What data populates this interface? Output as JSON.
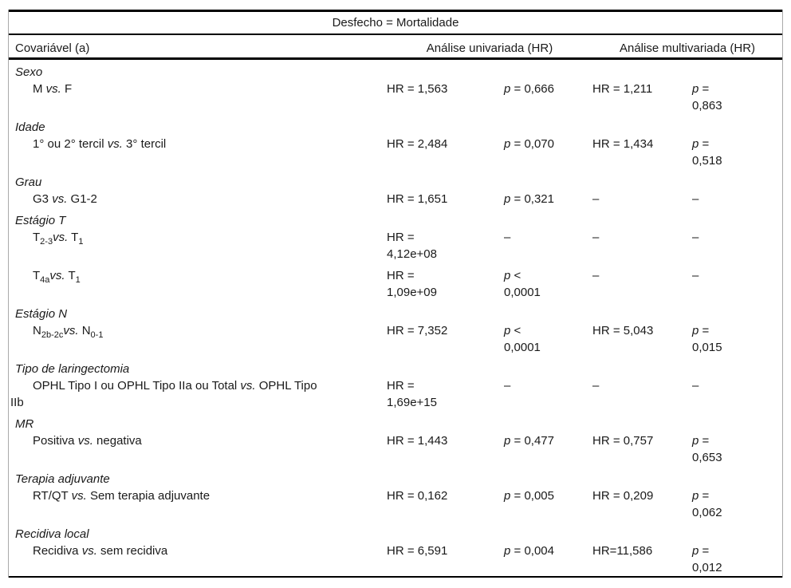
{
  "colors": {
    "rule": "#000000",
    "side_border": "#a9a9a9",
    "text": "#1a1a1a",
    "background": "#ffffff"
  },
  "table": {
    "title": "Desfecho = Mortalidade",
    "columns": {
      "covariate": "Covariável (a)",
      "univariate": "Análise univariada (HR)",
      "multivariate": "Análise multivariada (HR)"
    },
    "groups": [
      {
        "category": "Sexo",
        "rows": [
          {
            "label": [
              {
                "t": "M "
              },
              {
                "t": "vs.",
                "s": "i"
              },
              {
                "t": " F"
              }
            ],
            "uni_hr": [
              {
                "t": "HR = 1,563"
              }
            ],
            "uni_p": [
              {
                "t": "p",
                "s": "i"
              },
              {
                "t": " = 0,666"
              }
            ],
            "multi_hr": [
              {
                "t": "HR = 1,211"
              }
            ],
            "multi_p": [
              {
                "t": "p",
                "s": "i"
              },
              {
                "t": " =\n0,863"
              }
            ]
          }
        ]
      },
      {
        "category": "Idade",
        "rows": [
          {
            "label": [
              {
                "t": "1° ou 2° tercil "
              },
              {
                "t": "vs.",
                "s": "i"
              },
              {
                "t": " 3° tercil"
              }
            ],
            "uni_hr": [
              {
                "t": "HR = 2,484"
              }
            ],
            "uni_p": [
              {
                "t": "p",
                "s": "i"
              },
              {
                "t": " = 0,070"
              }
            ],
            "multi_hr": [
              {
                "t": "HR = 1,434"
              }
            ],
            "multi_p": [
              {
                "t": "p",
                "s": "i"
              },
              {
                "t": " =\n0,518"
              }
            ]
          }
        ]
      },
      {
        "category": "Grau",
        "rows": [
          {
            "label": [
              {
                "t": "G3 "
              },
              {
                "t": "vs.",
                "s": "i"
              },
              {
                "t": " G1-2"
              }
            ],
            "uni_hr": [
              {
                "t": "HR = 1,651"
              }
            ],
            "uni_p": [
              {
                "t": "p",
                "s": "i"
              },
              {
                "t": " = 0,321"
              }
            ],
            "multi_hr": [
              {
                "t": "–"
              }
            ],
            "multi_p": [
              {
                "t": "–"
              }
            ]
          }
        ]
      },
      {
        "category": "Estágio T",
        "rows": [
          {
            "label": [
              {
                "t": "T"
              },
              {
                "t": "2-3",
                "s": "sub"
              },
              {
                "t": "vs.",
                "s": "i"
              },
              {
                "t": " T"
              },
              {
                "t": "1",
                "s": "sub"
              }
            ],
            "uni_hr": [
              {
                "t": "HR =\n4,12e+08"
              }
            ],
            "uni_p": [
              {
                "t": "–"
              }
            ],
            "multi_hr": [
              {
                "t": "–"
              }
            ],
            "multi_p": [
              {
                "t": "–"
              }
            ]
          },
          {
            "label": [
              {
                "t": "T"
              },
              {
                "t": "4a",
                "s": "sub"
              },
              {
                "t": "vs.",
                "s": "i"
              },
              {
                "t": " T"
              },
              {
                "t": "1",
                "s": "sub"
              }
            ],
            "uni_hr": [
              {
                "t": "HR =\n1,09e+09"
              }
            ],
            "uni_p": [
              {
                "t": "p",
                "s": "i"
              },
              {
                "t": " <\n0,0001"
              }
            ],
            "multi_hr": [
              {
                "t": "–"
              }
            ],
            "multi_p": [
              {
                "t": "–"
              }
            ]
          }
        ]
      },
      {
        "category": "Estágio N",
        "rows": [
          {
            "label": [
              {
                "t": "N"
              },
              {
                "t": "2b-2c",
                "s": "sub"
              },
              {
                "t": "vs.",
                "s": "i"
              },
              {
                "t": " N"
              },
              {
                "t": "0-1",
                "s": "sub"
              }
            ],
            "uni_hr": [
              {
                "t": "HR = 7,352"
              }
            ],
            "uni_p": [
              {
                "t": "p",
                "s": "i"
              },
              {
                "t": " <\n0,0001"
              }
            ],
            "multi_hr": [
              {
                "t": "HR = 5,043"
              }
            ],
            "multi_p": [
              {
                "t": "p",
                "s": "i"
              },
              {
                "t": " =\n0,015"
              }
            ]
          }
        ]
      },
      {
        "category": "Tipo de laringectomia",
        "rows": [
          {
            "label": [
              {
                "t": "OPHL Tipo I ou OPHL Tipo IIa ou Total "
              },
              {
                "t": "vs.",
                "s": "i"
              },
              {
                "t": " OPHL Tipo\nIIb"
              }
            ],
            "uni_hr": [
              {
                "t": "HR =\n1,69e+15"
              }
            ],
            "uni_p": [
              {
                "t": "–"
              }
            ],
            "multi_hr": [
              {
                "t": "–"
              }
            ],
            "multi_p": [
              {
                "t": "–"
              }
            ]
          }
        ]
      },
      {
        "category": "MR",
        "rows": [
          {
            "label": [
              {
                "t": "Positiva "
              },
              {
                "t": "vs.",
                "s": "i"
              },
              {
                "t": " negativa"
              }
            ],
            "uni_hr": [
              {
                "t": "HR = 1,443"
              }
            ],
            "uni_p": [
              {
                "t": "p",
                "s": "i"
              },
              {
                "t": " = 0,477"
              }
            ],
            "multi_hr": [
              {
                "t": "HR = 0,757"
              }
            ],
            "multi_p": [
              {
                "t": "p",
                "s": "i"
              },
              {
                "t": " =\n0,653"
              }
            ]
          }
        ]
      },
      {
        "category": "Terapia adjuvante",
        "rows": [
          {
            "label": [
              {
                "t": "RT/QT "
              },
              {
                "t": "vs.",
                "s": "i"
              },
              {
                "t": " Sem terapia adjuvante"
              }
            ],
            "uni_hr": [
              {
                "t": "HR = 0,162"
              }
            ],
            "uni_p": [
              {
                "t": "p",
                "s": "i"
              },
              {
                "t": " = 0,005"
              }
            ],
            "multi_hr": [
              {
                "t": "HR = 0,209"
              }
            ],
            "multi_p": [
              {
                "t": "p",
                "s": "i"
              },
              {
                "t": " =\n0,062"
              }
            ]
          }
        ]
      },
      {
        "category": "Recidiva local",
        "rows": [
          {
            "label": [
              {
                "t": "Recidiva "
              },
              {
                "t": "vs.",
                "s": "i"
              },
              {
                "t": " sem recidiva"
              }
            ],
            "uni_hr": [
              {
                "t": "HR = 6,591"
              }
            ],
            "uni_p": [
              {
                "t": "p",
                "s": "i"
              },
              {
                "t": " = 0,004"
              }
            ],
            "multi_hr": [
              {
                "t": "HR=11,586"
              }
            ],
            "multi_p": [
              {
                "t": "p",
                "s": "i"
              },
              {
                "t": " =\n0,012"
              }
            ]
          }
        ]
      }
    ]
  }
}
